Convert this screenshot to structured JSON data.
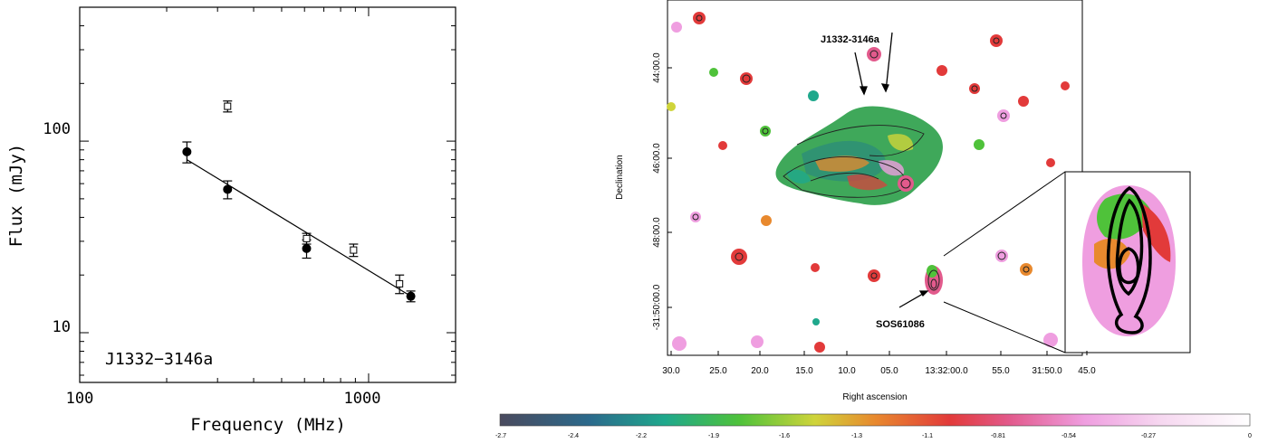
{
  "chart_data": [
    {
      "type": "scatter",
      "xlabel": "Frequency (MHz)",
      "ylabel": "Flux (mJy)",
      "xscale": "log",
      "yscale": "log",
      "xlim": [
        100,
        2000
      ],
      "ylim": [
        5.5,
        500
      ],
      "x_ticks": [
        100,
        1000
      ],
      "x_tick_labels": [
        "100",
        "1000"
      ],
      "y_ticks": [
        10,
        100
      ],
      "y_tick_labels": [
        "10",
        "100"
      ],
      "annotation": "J1332−3146a",
      "grid": false,
      "series": [
        {
          "marker": "filled-circle",
          "points": [
            {
              "x": 235,
              "y": 88,
              "err": 11
            },
            {
              "x": 325,
              "y": 56,
              "err": 6
            },
            {
              "x": 610,
              "y": 27.5,
              "err": 3
            },
            {
              "x": 1400,
              "y": 15.5,
              "err": 1
            }
          ]
        },
        {
          "marker": "open-square",
          "points": [
            {
              "x": 325,
              "y": 152,
              "err": 10
            },
            {
              "x": 610,
              "y": 31,
              "err": 2
            },
            {
              "x": 887,
              "y": 27,
              "err": 2
            },
            {
              "x": 1280,
              "y": 18,
              "err": 2
            }
          ]
        }
      ],
      "fit_line": {
        "x": [
          235,
          1400
        ],
        "y": [
          80,
          15.5
        ]
      }
    },
    {
      "type": "heatmap",
      "xlabel": "Right ascension",
      "ylabel": "Declination",
      "x_tick_labels": [
        "30.0",
        "25.0",
        "20.0",
        "15.0",
        "10.0",
        "05.0",
        "13:32:00.0",
        "55.0",
        "31:50.0",
        "45.0"
      ],
      "y_tick_labels": [
        "44:00.0",
        "46:00.0",
        "48:00.0",
        "-31:50:00.0"
      ],
      "annotations": [
        "J1332-3146a",
        "SOS61086"
      ],
      "colorbar_ticks": [
        "-2.7",
        "-2.4",
        "-2.2",
        "-1.9",
        "-1.6",
        "-1.3",
        "-1.1",
        "-0.81",
        "-0.54",
        "-0.27",
        "0"
      ],
      "colormap": [
        "#4a4a5e",
        "#2b6a8c",
        "#1fa88c",
        "#4fc23a",
        "#cfd43a",
        "#e8892e",
        "#e23a3a",
        "#e25a8c",
        "#ef9ee0",
        "#f6d7f0",
        "#ffffff"
      ]
    }
  ]
}
